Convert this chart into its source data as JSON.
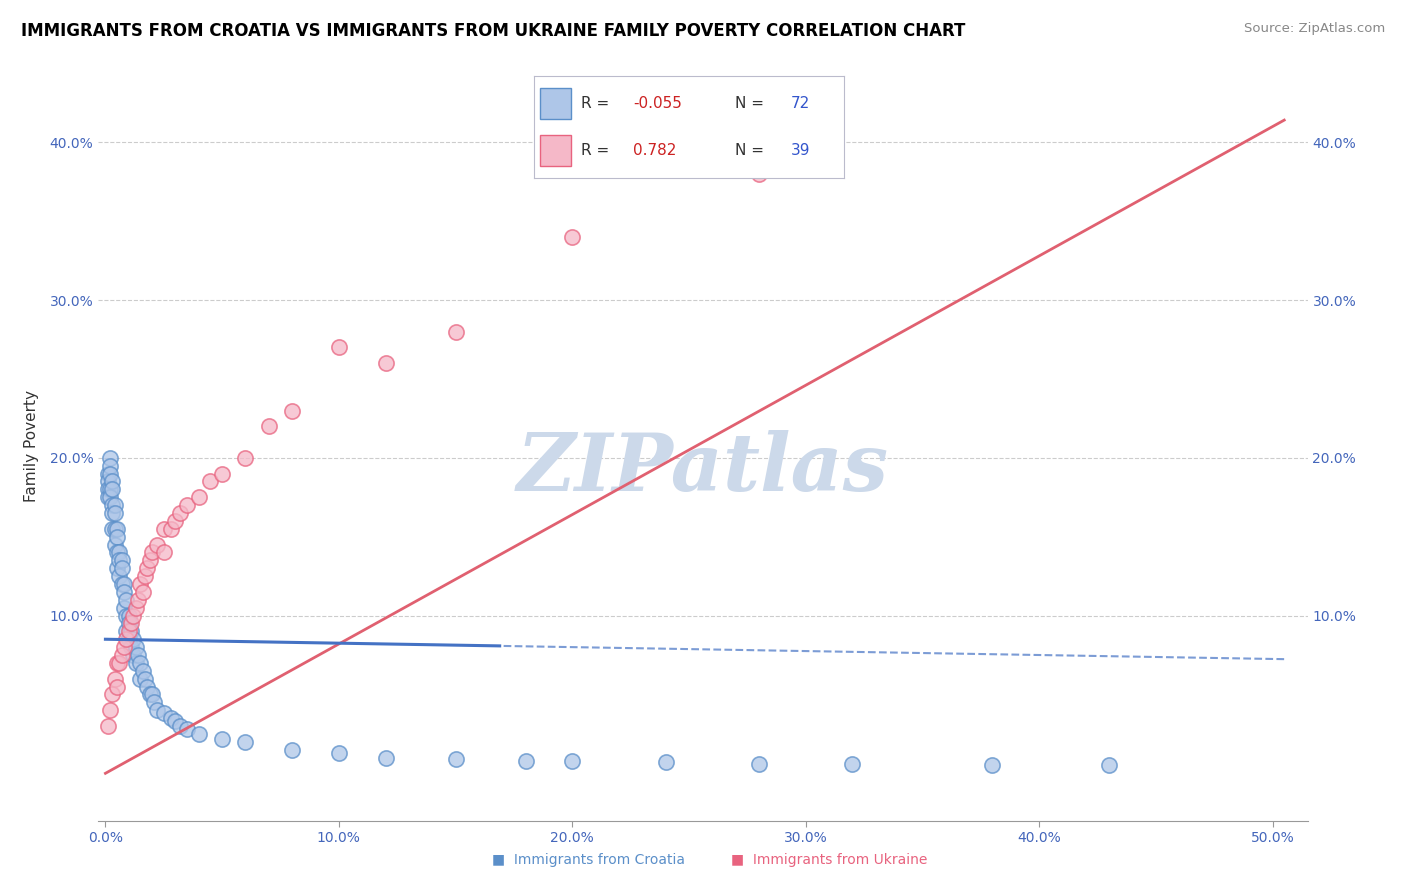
{
  "title": "IMMIGRANTS FROM CROATIA VS IMMIGRANTS FROM UKRAINE FAMILY POVERTY CORRELATION CHART",
  "source": "Source: ZipAtlas.com",
  "ylabel": "Family Poverty",
  "xlim": [
    -0.003,
    0.515
  ],
  "ylim": [
    -0.03,
    0.445
  ],
  "xticks": [
    0.0,
    0.1,
    0.2,
    0.3,
    0.4,
    0.5
  ],
  "xtick_labels": [
    "0.0%",
    "10.0%",
    "20.0%",
    "30.0%",
    "40.0%",
    "50.0%"
  ],
  "yticks": [
    0.0,
    0.1,
    0.2,
    0.3,
    0.4
  ],
  "ytick_labels": [
    "",
    "10.0%",
    "20.0%",
    "30.0%",
    "40.0%"
  ],
  "croatia_color": "#aec6e8",
  "ukraine_color": "#f5b8c8",
  "croatia_edge_color": "#5b8fc9",
  "ukraine_edge_color": "#e8637f",
  "croatia_line_color": "#4472c4",
  "ukraine_line_color": "#e06070",
  "R_croatia": -0.055,
  "N_croatia": 72,
  "R_ukraine": 0.782,
  "N_ukraine": 39,
  "watermark": "ZIPatlas",
  "watermark_color": "#ccd9ea",
  "croatia_line_solid_end": 0.17,
  "ukraine_line_m": 0.82,
  "ukraine_line_b": 0.0,
  "croatia_line_m": -0.025,
  "croatia_line_b": 0.085,
  "croatia_x": [
    0.001,
    0.001,
    0.001,
    0.001,
    0.002,
    0.002,
    0.002,
    0.002,
    0.002,
    0.003,
    0.003,
    0.003,
    0.003,
    0.003,
    0.004,
    0.004,
    0.004,
    0.004,
    0.005,
    0.005,
    0.005,
    0.005,
    0.006,
    0.006,
    0.006,
    0.007,
    0.007,
    0.007,
    0.008,
    0.008,
    0.008,
    0.009,
    0.009,
    0.009,
    0.01,
    0.01,
    0.01,
    0.011,
    0.011,
    0.012,
    0.012,
    0.013,
    0.013,
    0.014,
    0.015,
    0.015,
    0.016,
    0.017,
    0.018,
    0.019,
    0.02,
    0.021,
    0.022,
    0.025,
    0.028,
    0.03,
    0.032,
    0.035,
    0.04,
    0.05,
    0.06,
    0.08,
    0.1,
    0.12,
    0.15,
    0.18,
    0.2,
    0.24,
    0.28,
    0.32,
    0.38,
    0.43
  ],
  "croatia_y": [
    0.19,
    0.185,
    0.18,
    0.175,
    0.2,
    0.195,
    0.19,
    0.18,
    0.175,
    0.185,
    0.18,
    0.17,
    0.165,
    0.155,
    0.17,
    0.165,
    0.155,
    0.145,
    0.155,
    0.15,
    0.14,
    0.13,
    0.14,
    0.135,
    0.125,
    0.135,
    0.13,
    0.12,
    0.12,
    0.115,
    0.105,
    0.11,
    0.1,
    0.09,
    0.1,
    0.095,
    0.085,
    0.09,
    0.08,
    0.085,
    0.075,
    0.08,
    0.07,
    0.075,
    0.07,
    0.06,
    0.065,
    0.06,
    0.055,
    0.05,
    0.05,
    0.045,
    0.04,
    0.038,
    0.035,
    0.033,
    0.03,
    0.028,
    0.025,
    0.022,
    0.02,
    0.015,
    0.013,
    0.01,
    0.009,
    0.008,
    0.008,
    0.007,
    0.006,
    0.006,
    0.005,
    0.005
  ],
  "ukraine_x": [
    0.001,
    0.002,
    0.003,
    0.004,
    0.005,
    0.005,
    0.006,
    0.007,
    0.008,
    0.009,
    0.01,
    0.011,
    0.012,
    0.013,
    0.014,
    0.015,
    0.016,
    0.017,
    0.018,
    0.019,
    0.02,
    0.022,
    0.025,
    0.025,
    0.028,
    0.03,
    0.032,
    0.035,
    0.04,
    0.045,
    0.05,
    0.06,
    0.07,
    0.08,
    0.1,
    0.12,
    0.15,
    0.2,
    0.28
  ],
  "ukraine_y": [
    0.03,
    0.04,
    0.05,
    0.06,
    0.07,
    0.055,
    0.07,
    0.075,
    0.08,
    0.085,
    0.09,
    0.095,
    0.1,
    0.105,
    0.11,
    0.12,
    0.115,
    0.125,
    0.13,
    0.135,
    0.14,
    0.145,
    0.155,
    0.14,
    0.155,
    0.16,
    0.165,
    0.17,
    0.175,
    0.185,
    0.19,
    0.2,
    0.22,
    0.23,
    0.27,
    0.26,
    0.28,
    0.34,
    0.38
  ]
}
